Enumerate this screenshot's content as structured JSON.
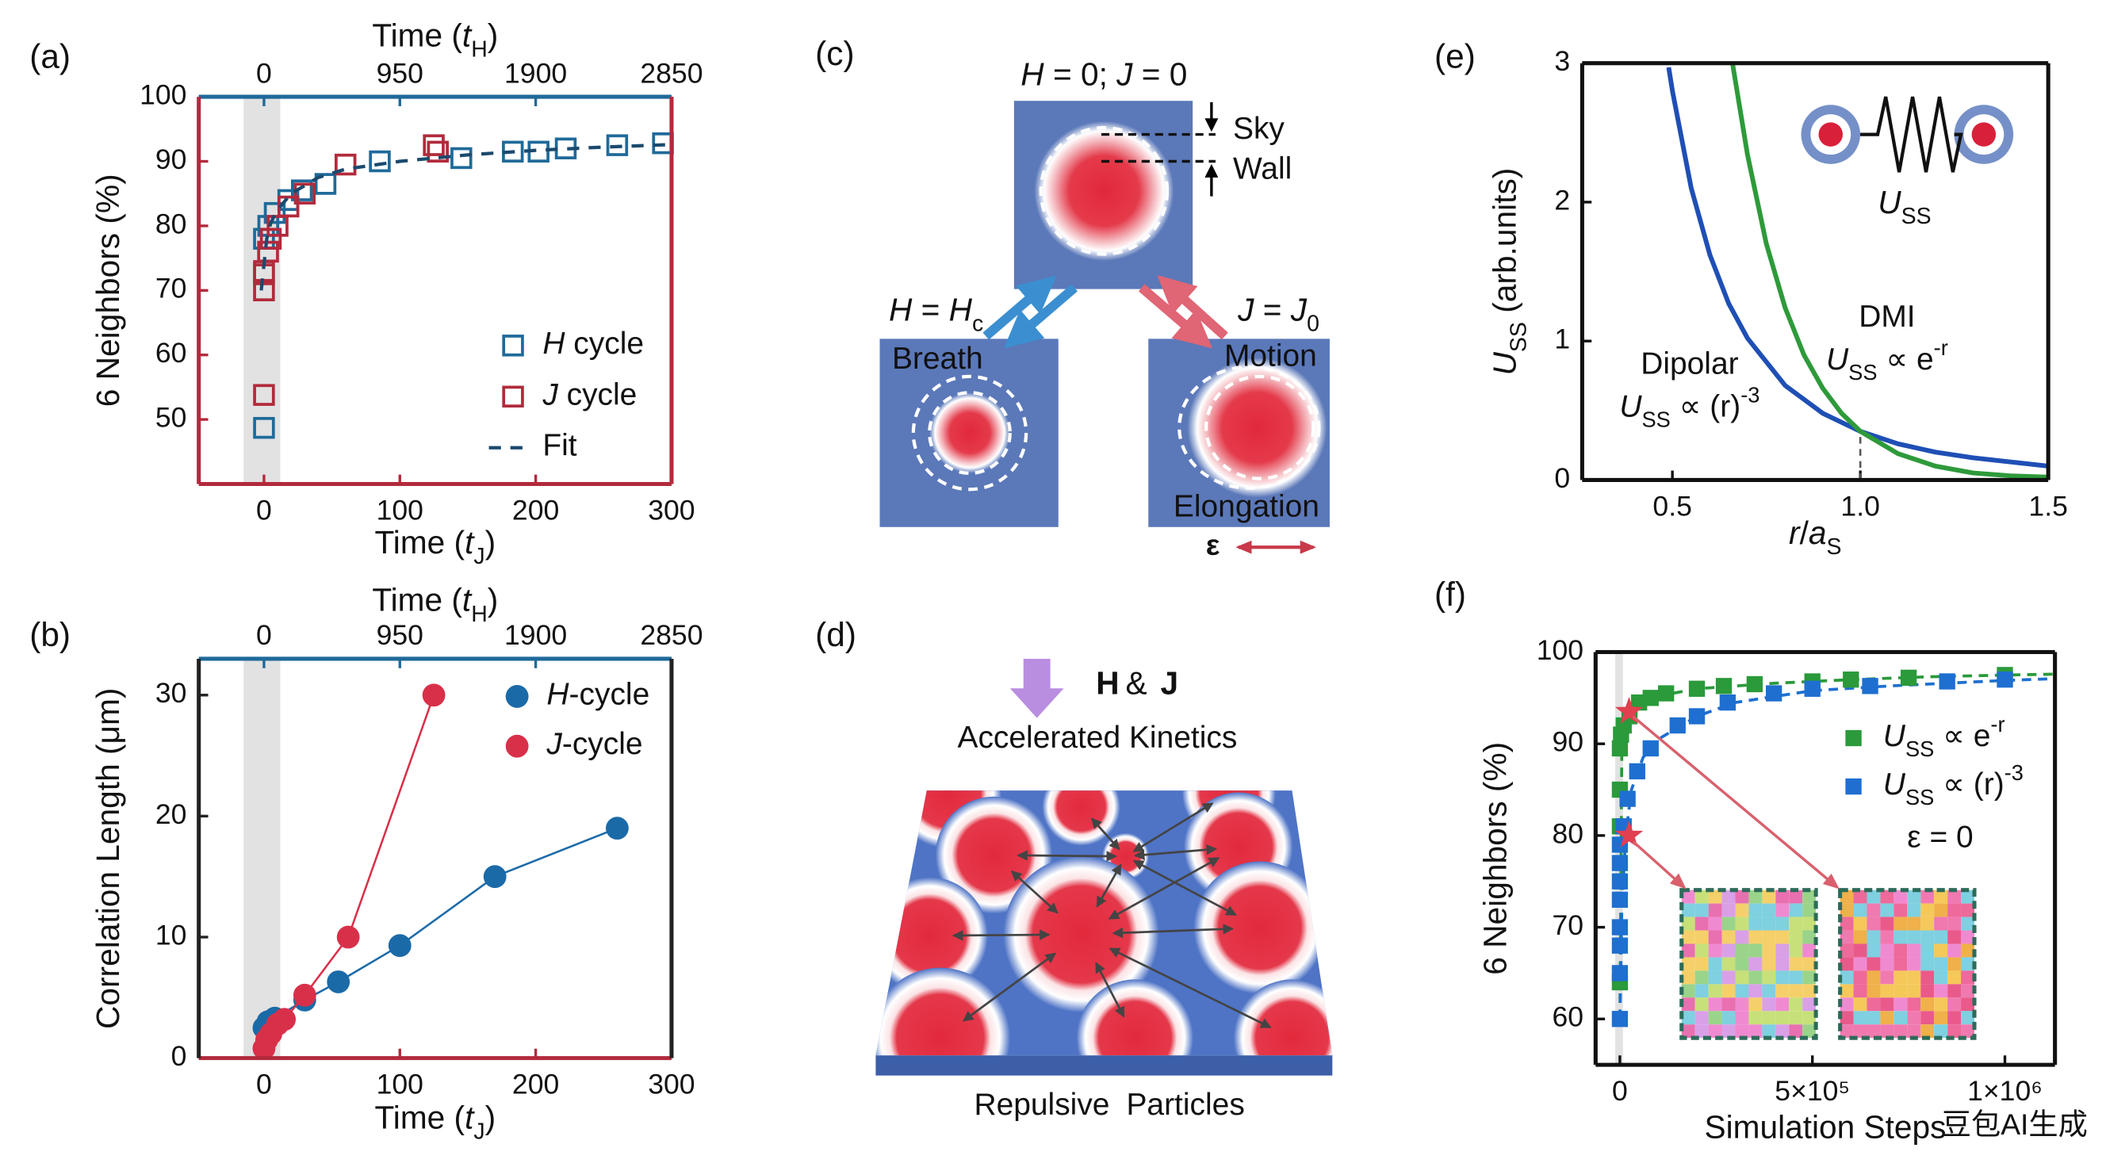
{
  "chart_data": [
    {
      "type": "scatter",
      "panel_label": "(a)",
      "xlabel": [
        "Time (",
        {
          "i": "t"
        },
        {
          "sub": "J"
        },
        ")"
      ],
      "x2label": [
        "Time (",
        {
          "i": "t"
        },
        {
          "sub": "H"
        },
        ")"
      ],
      "ylabel": "6 Neighbors (%)",
      "xlim": [
        -48,
        300
      ],
      "xticks": [
        0,
        100,
        200,
        300
      ],
      "x2lim": [
        -456,
        2850
      ],
      "x2ticks": [
        0,
        950,
        1900,
        2850
      ],
      "ylim": [
        40,
        100
      ],
      "yticks": [
        50,
        60,
        70,
        80,
        90,
        100
      ],
      "axis_colors": {
        "bottom": "#b22a3c",
        "top": "#1f6a9a",
        "left": "#b22a3c",
        "right": "#b22a3c"
      },
      "shaded_xrange": [
        -15,
        12
      ],
      "legend": "lower right",
      "series": [
        {
          "name": [
            {
              "i": "H"
            },
            " cycle"
          ],
          "color": "#1f6a9a",
          "marker": "square-open",
          "line": "none",
          "xaxis": "x2",
          "x": [
            0,
            0,
            30,
            75,
            170,
            265,
            430,
            810,
            1380,
            1740,
            1920,
            2110,
            2470,
            2790
          ],
          "values": [
            48.7,
            78,
            80,
            82,
            84,
            85.5,
            86.5,
            90,
            90.5,
            91.5,
            91.5,
            92,
            92.5,
            92.8
          ]
        },
        {
          "name": [
            {
              "i": "J"
            },
            " cycle"
          ],
          "color": "#b22a3c",
          "marker": "square-open",
          "line": "none",
          "x": [
            0,
            0,
            0,
            0,
            3,
            5,
            10,
            18,
            30,
            60,
            125,
            128
          ],
          "values": [
            53.8,
            70,
            72.5,
            73,
            76,
            78,
            80,
            83,
            85,
            89.5,
            92.5,
            91.5
          ]
        },
        {
          "name": "Fit",
          "color": "#1b4a6e",
          "marker": "none",
          "line": "dashed",
          "x": [
            -2,
            2,
            5,
            10,
            20,
            40,
            60,
            100,
            150,
            200,
            250,
            300
          ],
          "values": [
            70,
            78,
            80.5,
            82.5,
            85,
            87.5,
            88.8,
            90,
            91,
            91.7,
            92.2,
            92.6
          ]
        }
      ]
    },
    {
      "type": "scatter",
      "panel_label": "(b)",
      "xlabel": [
        "Time (",
        {
          "i": "t"
        },
        {
          "sub": "J"
        },
        ")"
      ],
      "x2label": [
        "Time (",
        {
          "i": "t"
        },
        {
          "sub": "H"
        },
        ")"
      ],
      "ylabel": "Correlation Length (μm)",
      "xlim": [
        -48,
        300
      ],
      "xticks": [
        0,
        100,
        200,
        300
      ],
      "x2lim": [
        -456,
        2850
      ],
      "x2ticks": [
        0,
        950,
        1900,
        2850
      ],
      "ylim": [
        0,
        33
      ],
      "yticks": [
        0,
        10,
        20,
        30
      ],
      "axis_colors": {
        "bottom": "#b22a3c",
        "top": "#1f6a9a",
        "left": "#222222",
        "right": "#222222"
      },
      "shaded_xrange": [
        -15,
        12
      ],
      "legend": "upper right",
      "series": [
        {
          "name": [
            {
              "i": "H"
            },
            "-cycle"
          ],
          "color": "#1b6aa8",
          "marker": "circle",
          "line": "solid",
          "xaxis": "x2",
          "x": [
            0,
            28,
            76,
            285,
            520,
            950,
            1615,
            2470
          ],
          "values": [
            2.5,
            3,
            3.3,
            4.8,
            6.3,
            9.3,
            15,
            19
          ]
        },
        {
          "name": [
            {
              "i": "J"
            },
            "-cycle"
          ],
          "color": "#d9304a",
          "marker": "circle",
          "line": "solid",
          "x": [
            0,
            2,
            5,
            10,
            15,
            30,
            62,
            125
          ],
          "values": [
            0.8,
            1.5,
            2,
            2.8,
            3.2,
            5.2,
            10,
            30
          ]
        }
      ]
    },
    {
      "type": "line",
      "panel_label": "(e)",
      "xlabel": [
        {
          "i": "r"
        },
        "/",
        {
          "i": "a"
        },
        {
          "sub": "S"
        }
      ],
      "ylabel": [
        {
          "i": "U"
        },
        {
          "sub": "SS"
        },
        " (arb.units)"
      ],
      "xlim": [
        0.26,
        1.5
      ],
      "xticks": [
        0.5,
        {
          "value": 1,
          "label": "1.0"
        },
        1.5
      ],
      "ylim": [
        0,
        3
      ],
      "yticks": [
        0,
        1,
        2,
        3
      ],
      "axis_colors": {
        "bottom": "#111111",
        "top": "#111111",
        "left": "#111111",
        "right": "#111111"
      },
      "legend": "none",
      "inset_label": [
        {
          "i": "U"
        },
        {
          "sub": "SS"
        }
      ],
      "marker_line": {
        "x": 1,
        "y": 0.35
      },
      "series": [
        {
          "name": "Dipolar",
          "formula": [
            {
              "i": "U"
            },
            {
              "sub": "SS"
            },
            " ∝ (r)",
            {
              "sup": "-3"
            }
          ],
          "color": "#1f4fb5",
          "marker": "none",
          "line": "solid",
          "x": [
            0.49,
            0.5,
            0.55,
            0.6,
            0.65,
            0.7,
            0.8,
            0.9,
            1.0,
            1.1,
            1.2,
            1.3,
            1.4,
            1.5
          ],
          "values": [
            2.97,
            2.8,
            2.1,
            1.62,
            1.27,
            1.02,
            0.68,
            0.48,
            0.35,
            0.26,
            0.2,
            0.16,
            0.13,
            0.1
          ]
        },
        {
          "name": "DMI",
          "formula": [
            {
              "i": "U"
            },
            {
              "sub": "SS"
            },
            " ∝ e",
            {
              "sup": "-r"
            }
          ],
          "color": "#2e9a3a",
          "marker": "none",
          "line": "solid",
          "x": [
            0.66,
            0.7,
            0.75,
            0.8,
            0.85,
            0.9,
            0.95,
            1.0,
            1.1,
            1.2,
            1.3,
            1.4,
            1.5
          ],
          "values": [
            3,
            2.34,
            1.7,
            1.24,
            0.9,
            0.66,
            0.48,
            0.35,
            0.19,
            0.1,
            0.05,
            0.03,
            0.02
          ]
        }
      ]
    },
    {
      "type": "scatter",
      "panel_label": "(f)",
      "xlabel": "Simulation Steps",
      "ylabel": "6 Neighbors (%)",
      "xlim": [
        -63000,
        1130000
      ],
      "xticks": [
        0,
        {
          "value": 500000,
          "label": "5×10⁵"
        },
        {
          "value": 1000000,
          "label": "1×10⁶"
        }
      ],
      "ylim": [
        55,
        100
      ],
      "yticks": [
        60,
        70,
        80,
        90,
        100
      ],
      "axis_colors": {
        "bottom": "#111111",
        "top": "#111111",
        "left": "#111111",
        "right": "#111111"
      },
      "shaded_xrange": [
        -12000,
        8000
      ],
      "legend": "center right",
      "annotation": "ε = 0",
      "series": [
        {
          "name": [
            {
              "i": "U"
            },
            {
              "sub": "SS"
            },
            " ∝ e",
            {
              "sup": "-r"
            }
          ],
          "color": "#2a9a3a",
          "marker": "square",
          "line": "none",
          "x": [
            0,
            0,
            0,
            0,
            3000,
            10000,
            25000,
            50000,
            80000,
            120000,
            200000,
            270000,
            350000,
            500000,
            600000,
            750000,
            1000000
          ],
          "values": [
            64,
            81,
            85,
            89.5,
            91,
            92,
            93,
            94.5,
            95,
            95.5,
            96,
            96.3,
            96.5,
            96.8,
            97,
            97.2,
            97.5
          ]
        },
        {
          "name": [
            {
              "i": "U"
            },
            {
              "sub": "SS"
            },
            " ∝ (r)",
            {
              "sup": "-3"
            }
          ],
          "color": "#1e6fd0",
          "marker": "square",
          "line": "none",
          "x": [
            0,
            0,
            0,
            0,
            0,
            0,
            0,
            0,
            10000,
            20000,
            45000,
            80000,
            150000,
            200000,
            280000,
            400000,
            500000,
            650000,
            850000,
            1000000
          ],
          "values": [
            60,
            65,
            68,
            70,
            73,
            75,
            77,
            79,
            81,
            84,
            87,
            89.5,
            92,
            93,
            94.5,
            95.5,
            96,
            96.3,
            96.8,
            97
          ]
        }
      ],
      "fit_curves": [
        {
          "color": "#2a9a3a",
          "x": [
            0,
            5000,
            20000,
            50000,
            100000,
            200000,
            400000,
            600000,
            800000,
            1000000,
            1130000
          ],
          "values": [
            60,
            89,
            92.5,
            94.3,
            95.2,
            96,
            96.6,
            97,
            97.3,
            97.5,
            97.6
          ]
        },
        {
          "color": "#1e6fd0",
          "x": [
            0,
            5000,
            15000,
            30000,
            60000,
            100000,
            200000,
            300000,
            500000,
            700000,
            1000000,
            1130000
          ],
          "values": [
            60,
            72,
            80,
            85,
            88.5,
            90.5,
            93,
            94.5,
            95.8,
            96.3,
            96.9,
            97.1
          ]
        }
      ],
      "stars": {
        "color": "#e0404f",
        "x": [
          24000,
          24000
        ],
        "values": [
          93.5,
          80
        ]
      }
    }
  ],
  "diagrams": {
    "c": {
      "panel_label": "(c)",
      "top_label": [
        {
          "i": "H"
        },
        " = 0; ",
        {
          "i": "J"
        },
        " = 0"
      ],
      "sky": "Sky",
      "wall": "Wall",
      "left_label": [
        {
          "i": "H"
        },
        " = ",
        {
          "i": "H"
        },
        {
          "sub": "c"
        }
      ],
      "right_label": [
        {
          "i": "J"
        },
        " = ",
        {
          "i": "J"
        },
        {
          "sub": "0"
        }
      ],
      "breath": "Breath",
      "motion": "Motion",
      "elongation": "Elongation",
      "epsilon": "ε"
    },
    "d": {
      "panel_label": "(d)",
      "field": "H",
      "amp": "&",
      "current": "J",
      "kinetics": "Accelerated Kinetics",
      "particles": "Repulsive Particles"
    }
  },
  "watermark": "豆包AI生成"
}
